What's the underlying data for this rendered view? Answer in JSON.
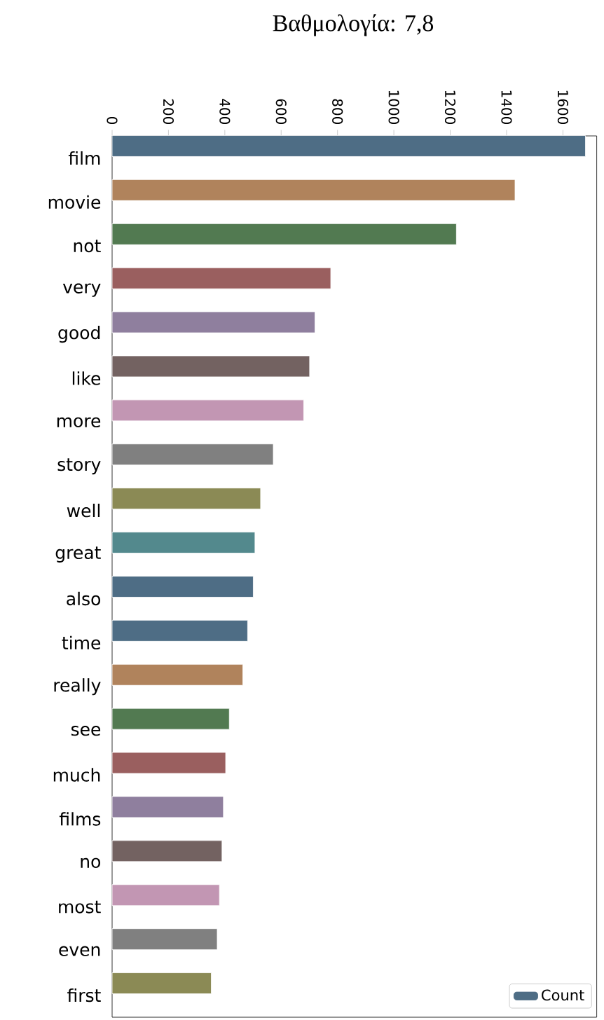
{
  "chart_data": {
    "type": "bar",
    "orientation": "horizontal",
    "title": "Βαθμολογία: 7,8",
    "categories": [
      "film",
      "movie",
      "not",
      "very",
      "good",
      "like",
      "more",
      "story",
      "well",
      "great",
      "also",
      "time",
      "really",
      "see",
      "much",
      "films",
      "no",
      "most",
      "even",
      "first"
    ],
    "series": [
      {
        "name": "Count",
        "color": "#4e6d85",
        "values": [
          1680,
          1430,
          1222,
          776,
          720,
          701,
          680,
          572,
          527,
          507,
          501,
          481,
          464,
          416,
          403,
          395,
          390,
          381,
          373,
          352
        ],
        "colors": [
          "#4e6d85",
          "#b0835c",
          "#527a51",
          "#9a5f5f",
          "#8f7f9e",
          "#736261",
          "#c296b3",
          "#808080",
          "#8b8a55",
          "#53898d",
          "#4e6d85",
          "#4e6d85",
          "#b0835c",
          "#527a51",
          "#9a5f5f",
          "#8f7f9e",
          "#736261",
          "#c296b3",
          "#808080",
          "#8b8a55"
        ]
      }
    ],
    "xlim": [
      0,
      1720
    ],
    "xticks": [
      0,
      200,
      400,
      600,
      800,
      1000,
      1200,
      1400,
      1600
    ],
    "legend": "bottom right",
    "grid": false
  }
}
